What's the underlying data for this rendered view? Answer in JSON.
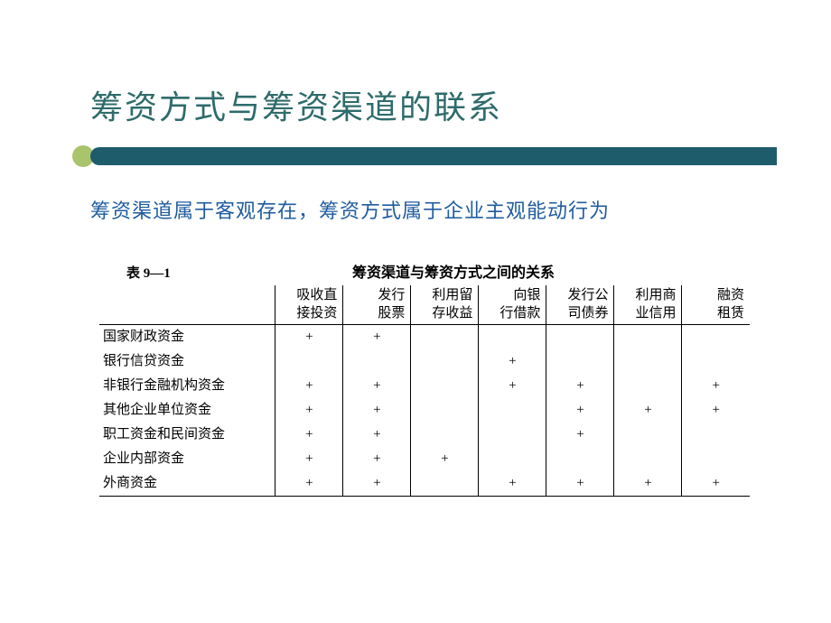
{
  "slide": {
    "title": "筹资方式与筹资渠道的联系",
    "subtitle": "筹资渠道属于客观存在，筹资方式属于企业主观能动行为",
    "title_color": "#2f6b6b",
    "subtitle_color": "#1f5c9f",
    "bar_color": "#1f5c6b",
    "circle_color": "#a9c46c"
  },
  "table": {
    "label": "表 9—1",
    "title": "筹资渠道与筹资方式之间的关系",
    "columns": [
      {
        "line1": "吸收直",
        "line2": "接投资"
      },
      {
        "line1": "发行",
        "line2": "股票"
      },
      {
        "line1": "利用留",
        "line2": "存收益"
      },
      {
        "line1": "向银",
        "line2": "行借款"
      },
      {
        "line1": "发行公",
        "line2": "司债券"
      },
      {
        "line1": "利用商",
        "line2": "业信用"
      },
      {
        "line1": "融资",
        "line2": "租赁"
      }
    ],
    "rows": [
      {
        "label": "国家财政资金",
        "cells": [
          "+",
          "+",
          "",
          "",
          "",
          "",
          ""
        ]
      },
      {
        "label": "银行信贷资金",
        "cells": [
          "",
          "",
          "",
          "+",
          "",
          "",
          ""
        ]
      },
      {
        "label": "非银行金融机构资金",
        "cells": [
          "+",
          "+",
          "",
          "+",
          "+",
          "",
          "+"
        ]
      },
      {
        "label": "其他企业单位资金",
        "cells": [
          "+",
          "+",
          "",
          "",
          "+",
          "+",
          "+"
        ]
      },
      {
        "label": "职工资金和民间资金",
        "cells": [
          "+",
          "+",
          "",
          "",
          "+",
          "",
          ""
        ]
      },
      {
        "label": "企业内部资金",
        "cells": [
          "+",
          "+",
          "+",
          "",
          "",
          "",
          ""
        ]
      },
      {
        "label": "外商资金",
        "cells": [
          "+",
          "+",
          "",
          "+",
          "+",
          "+",
          "+"
        ]
      }
    ]
  }
}
